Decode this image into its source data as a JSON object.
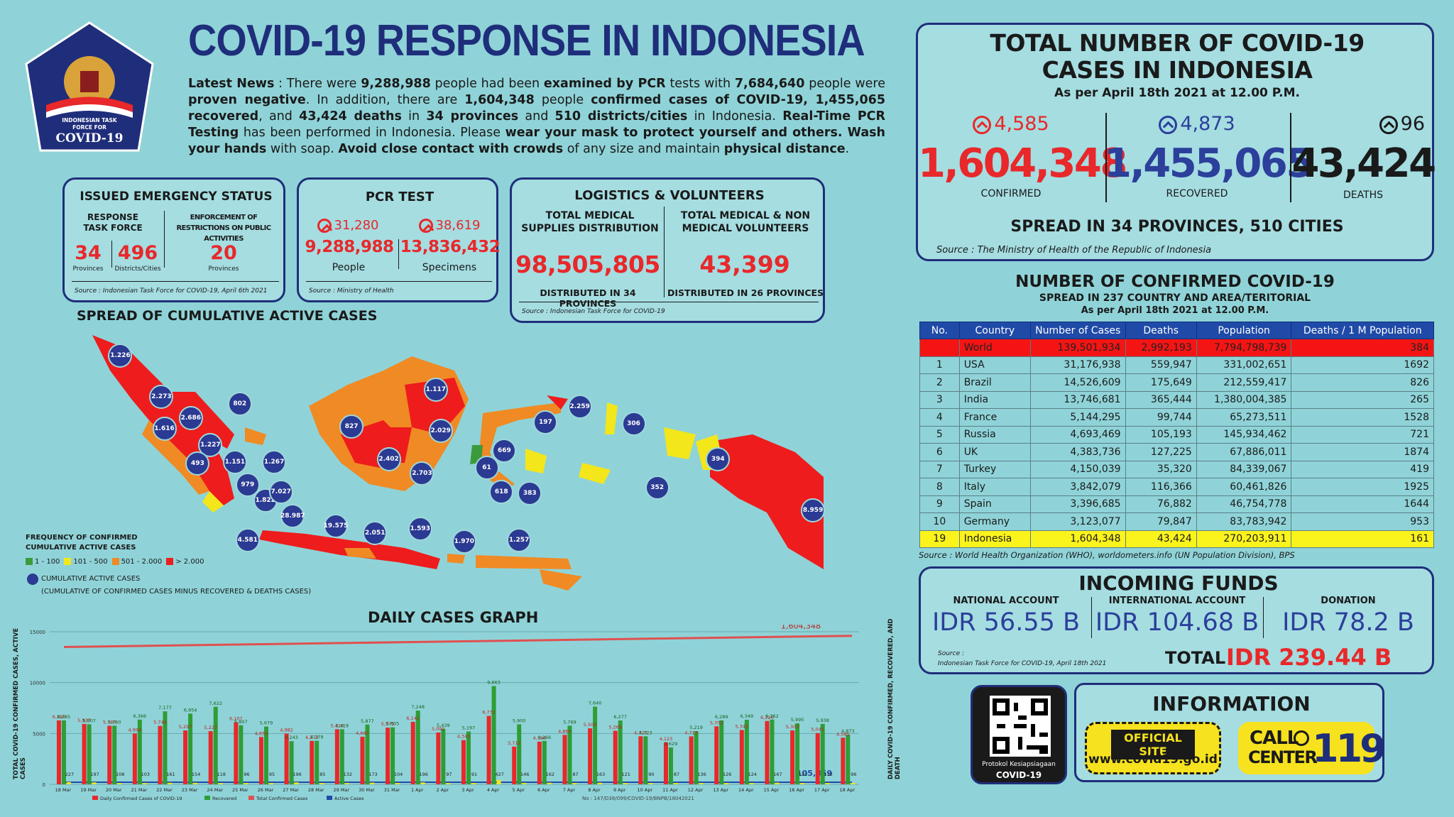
{
  "header": {
    "title": "COVID-19 RESPONSE IN INDONESIA",
    "logo": {
      "line1": "INDONESIAN TASK",
      "line2": "FORCE FOR",
      "line3": "COVID-19"
    },
    "news": [
      {
        "t": "Latest News",
        "b": true
      },
      {
        "t": " : There were ",
        "b": false
      },
      {
        "t": "9,288,988",
        "b": true
      },
      {
        "t": " people had been ",
        "b": false
      },
      {
        "t": "examined by PCR",
        "b": true
      },
      {
        "t": " tests with ",
        "b": false
      },
      {
        "t": "7,684,640",
        "b": true
      },
      {
        "t": " people were ",
        "b": false
      },
      {
        "t": "proven negative",
        "b": true
      },
      {
        "t": ". In addition, there are ",
        "b": false
      },
      {
        "t": "1,604,348",
        "b": true
      },
      {
        "t": " people ",
        "b": false
      },
      {
        "t": "confirmed cases of COVID-19, 1,455,065 recovered",
        "b": true
      },
      {
        "t": ", and ",
        "b": false
      },
      {
        "t": "43,424 deaths",
        "b": true
      },
      {
        "t": " in ",
        "b": false
      },
      {
        "t": "34 provinces",
        "b": true
      },
      {
        "t": " and ",
        "b": false
      },
      {
        "t": "510 districts/cities",
        "b": true
      },
      {
        "t": " in Indonesia. ",
        "b": false
      },
      {
        "t": "Real-Time PCR Testing",
        "b": true
      },
      {
        "t": " has been performed in Indonesia. Please ",
        "b": false
      },
      {
        "t": "wear your mask to protect yourself and others. Wash your hands",
        "b": true
      },
      {
        "t": " with soap. ",
        "b": false
      },
      {
        "t": "Avoid close contact with crowds",
        "b": true
      },
      {
        "t": " of any size and maintain ",
        "b": false
      },
      {
        "t": "physical distance",
        "b": true
      },
      {
        "t": ".",
        "b": false
      }
    ]
  },
  "emergency": {
    "title": "ISSUED EMERGENCY STATUS",
    "left_head": "RESPONSE TASK FORCE",
    "right_head": "ENFORCEMENT OF RESTRICTIONS ON PUBLIC ACTIVITIES",
    "prov_value": "34",
    "prov_label": "Provinces",
    "dist_value": "496",
    "dist_label": "Districts/Cities",
    "enf_value": "20",
    "enf_label": "Provinces",
    "source": "Source : Indonesian Task Force for COVID-19, April 6th 2021"
  },
  "pcr": {
    "title": "PCR TEST",
    "people_inc": "31,280",
    "people_value": "9,288,988",
    "people_label": "People",
    "spec_inc": "38,619",
    "spec_value": "13,836,432",
    "spec_label": "Specimens",
    "source": "Source : Ministry of Health"
  },
  "logistics": {
    "title": "LOGISTICS & VOLUNTEERS",
    "left_head": "TOTAL MEDICAL SUPPLIES DISTRIBUTION",
    "left_value": "98,505,805",
    "left_foot": "DISTRIBUTED IN 34 PROVINCES",
    "right_head": "TOTAL MEDICAL & NON MEDICAL VOLUNTEERS",
    "right_value": "43,399",
    "right_foot": "DISTRIBUTED IN 26 PROVINCES",
    "source": "Source : Indonesian Task Force for COVID-19"
  },
  "totals": {
    "title1": "TOTAL NUMBER OF COVID-19",
    "title2": "CASES IN INDONESIA",
    "asof": "As per April 18th 2021 at 12.00 P.M.",
    "confirmed_inc": "4,585",
    "confirmed": "1,604,348",
    "confirmed_label": "CONFIRMED",
    "recovered_inc": "4,873",
    "recovered": "1,455,065",
    "recovered_label": "RECOVERED",
    "deaths_inc": "96",
    "deaths": "43,424",
    "deaths_label": "DEATHS",
    "spread": "SPREAD IN 34 PROVINCES, 510 CITIES",
    "source": "Source : The Ministry of Health of the Republic of Indonesia"
  },
  "world": {
    "title": "NUMBER OF CONFIRMED COVID-19",
    "subtitle": "SPREAD IN 237 COUNTRY AND AREA/TERITORIAL",
    "asof": "As per April 18th 2021 at 12.00 P.M.",
    "headers": [
      "No.",
      "Country",
      "Number of Cases",
      "Deaths",
      "Population",
      "Deaths / 1 M Population"
    ],
    "rows": [
      [
        "",
        "World",
        "139,501,934",
        "2,992,193",
        "7,794,798,739",
        "384"
      ],
      [
        "1",
        "USA",
        "31,176,938",
        "559,947",
        "331,002,651",
        "1692"
      ],
      [
        "2",
        "Brazil",
        "14,526,609",
        "175,649",
        "212,559,417",
        "826"
      ],
      [
        "3",
        "India",
        "13,746,681",
        "365,444",
        "1,380,004,385",
        "265"
      ],
      [
        "4",
        "France",
        "5,144,295",
        "99,744",
        "65,273,511",
        "1528"
      ],
      [
        "5",
        "Russia",
        "4,693,469",
        "105,193",
        "145,934,462",
        "721"
      ],
      [
        "6",
        "UK",
        "4,383,736",
        "127,225",
        "67,886,011",
        "1874"
      ],
      [
        "7",
        "Turkey",
        "4,150,039",
        "35,320",
        "84,339,067",
        "419"
      ],
      [
        "8",
        "Italy",
        "3,842,079",
        "116,366",
        "60,461,826",
        "1925"
      ],
      [
        "9",
        "Spain",
        "3,396,685",
        "76,882",
        "46,754,778",
        "1644"
      ],
      [
        "10",
        "Germany",
        "3,123,077",
        "79,847",
        "83,783,942",
        "953"
      ],
      [
        "19",
        "Indonesia",
        "1,604,348",
        "43,424",
        "270,203,911",
        "161"
      ]
    ],
    "source": "Source : World Health Organization (WHO), worldometers.info (UN Population Division), BPS"
  },
  "funds": {
    "title": "INCOMING FUNDS",
    "nat_label": "NATIONAL ACCOUNT",
    "nat_value": "IDR 56.55 B",
    "int_label": "INTERNATIONAL ACCOUNT",
    "int_value": "IDR 104.68 B",
    "don_label": "DONATION",
    "don_value": "IDR 78.2 B",
    "total_label": "TOTAL",
    "total_value": "IDR 239.44 B",
    "source1": "Source :",
    "source2": "Indonesian Task Force for COVID-19, April 18th 2021"
  },
  "info": {
    "title": "INFORMATION",
    "official_label": "OFFICIAL SITE",
    "official_url": "www.covid19.go.id",
    "call1": "CALL",
    "call2": "CENTER",
    "call_number": "119",
    "qr_line1": "Protokol Kesiapsiagaan",
    "qr_line2": "COVID-19"
  },
  "map": {
    "title": "SPREAD OF CUMULATIVE ACTIVE CASES",
    "legend_title1": "FREQUENCY OF CONFIRMED",
    "legend_title2": "CUMULATIVE ACTIVE CASES",
    "legend_items": [
      {
        "label": "1 - 100",
        "color": "#3c9a3c"
      },
      {
        "label": "101 - 500",
        "color": "#f3e61a"
      },
      {
        "label": "501 - 2.000",
        "color": "#f08a24"
      },
      {
        "label": "> 2.000",
        "color": "#ee1c1c"
      }
    ],
    "dot_label": "CUMULATIVE ACTIVE CASES",
    "dot_note": "(CUMULATIVE OF CONFIRMED CASES MINUS RECOVERED & DEATHS CASES)",
    "dots": [
      "1.226",
      "2.273",
      "2.686",
      "1.616",
      "1.227",
      "1.151",
      "493",
      "979",
      "1.267",
      "802",
      "1.117",
      "827",
      "2.029",
      "2.402",
      "2.703",
      "1.822",
      "7.027",
      "28.987",
      "19.575",
      "4.581",
      "2.051",
      "1.593",
      "1.970",
      "1.257",
      "669",
      "61",
      "618",
      "383",
      "197",
      "2.259",
      "306",
      "394",
      "352",
      "8.959"
    ]
  },
  "chart_data": {
    "type": "bar",
    "title": "DAILY CASES GRAPH",
    "ylabel_left": "TOTAL COVID-19 CONFIRMED CASES, ACTIVE CASES",
    "ylabel_right": "DAILY COVID-19 CONFIRMED, RECOVERED, AND DEATH",
    "ylim": [
      0,
      15000
    ],
    "y_ticks": [
      "0",
      "5000",
      "10000",
      "15000"
    ],
    "categories": [
      "18 Mar",
      "19 Mar",
      "20 Mar",
      "21 Mar",
      "22 Mar",
      "23 Mar",
      "24 Mar",
      "25 Mar",
      "26 Mar",
      "27 Mar",
      "28 Mar",
      "29 Mar",
      "30 Mar",
      "31 Mar",
      "1 Apr",
      "2 Apr",
      "3 Apr",
      "4 Apr",
      "5 Apr",
      "6 Apr",
      "7 Apr",
      "8 Apr",
      "9 Apr",
      "10 Apr",
      "11 Apr",
      "12 Apr",
      "13 Apr",
      "14 Apr",
      "15 Apr",
      "16 Apr",
      "17 Apr",
      "18 Apr"
    ],
    "series": [
      {
        "name": "Daily Confirmed Cases of COVID-19",
        "color": "#e8282a",
        "values": [
          6285,
          5937,
          5760,
          4996,
          5744,
          5297,
          5227,
          6107,
          4656,
          4982,
          4273,
          5418,
          4682,
          5575,
          6142,
          5095,
          4345,
          6731,
          3712,
          4196,
          4860,
          5504,
          5268,
          4723,
          4123,
          4713,
          5702,
          5342,
          6226,
          5303,
          5041,
          4585
        ]
      },
      {
        "name": "Daily Recovered",
        "color": "#2e9d35",
        "values": [
          6285,
          5907,
          5760,
          6366,
          7177,
          6954,
          7622,
          5807,
          5679,
          4243,
          4279,
          5418,
          5877,
          5605,
          7248,
          5439,
          5197,
          9663,
          5900,
          4266,
          5769,
          7640,
          6277,
          4723,
          3629,
          5219,
          6289,
          6349,
          6362,
          5995,
          5938,
          4873
        ]
      },
      {
        "name": "Deaths",
        "color": "#f3e61a",
        "values": [
          227,
          197,
          108,
          103,
          161,
          154,
          118,
          96,
          95,
          196,
          85,
          132,
          173,
          104,
          196,
          97,
          91,
          427,
          146,
          162,
          87,
          163,
          121,
          90,
          87,
          136,
          126,
          124,
          167,
          123,
          132,
          96
        ]
      }
    ],
    "cumulative_label": "1,604,348",
    "active_label": "105,859",
    "legend": [
      "Daily Confirmed Cases of COVID-19",
      "Recovered",
      "Total Confirmed Cases",
      "Active Cases"
    ],
    "footer": "No : 147/D38/099/COVID-19/BNPB/18042021"
  }
}
